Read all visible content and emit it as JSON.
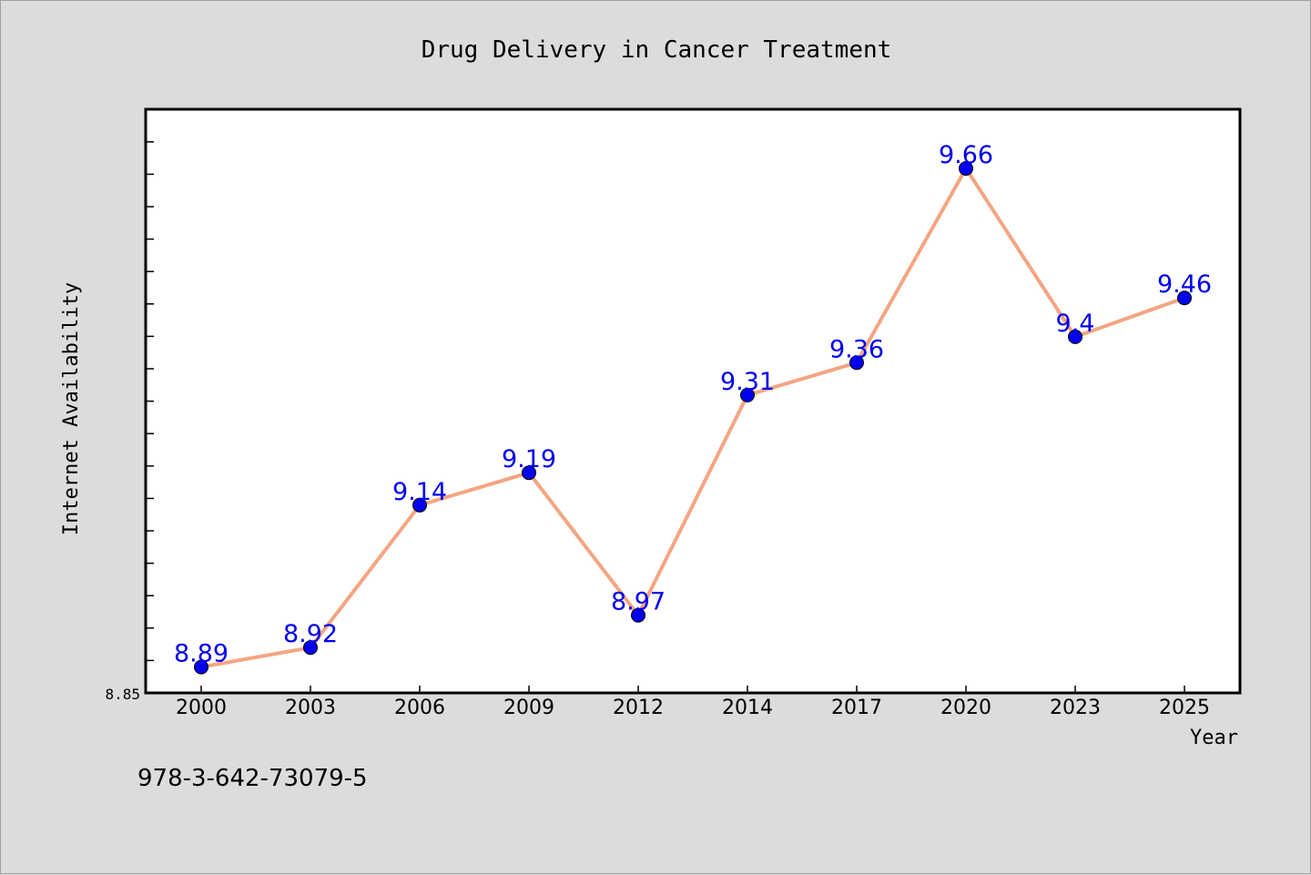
{
  "chart_data": {
    "type": "line",
    "title": "Drug Delivery in Cancer Treatment",
    "xlabel": "Year",
    "ylabel": "Internet Availability",
    "x": [
      "2000",
      "2003",
      "2006",
      "2009",
      "2012",
      "2014",
      "2017",
      "2020",
      "2023",
      "2025"
    ],
    "series": [
      {
        "values": [
          8.89,
          8.92,
          9.14,
          9.19,
          8.97,
          9.31,
          9.36,
          9.66,
          9.4,
          9.46
        ]
      }
    ],
    "ylim": [
      8.85,
      9.75
    ],
    "y_tick_labels": [
      "8.85"
    ],
    "grid": false,
    "legend": "none",
    "line_color": "#f4a582",
    "marker_color": "#0000ee",
    "label_color": "#0000ee"
  },
  "footer": {
    "code": "978-3-642-73079-5"
  }
}
